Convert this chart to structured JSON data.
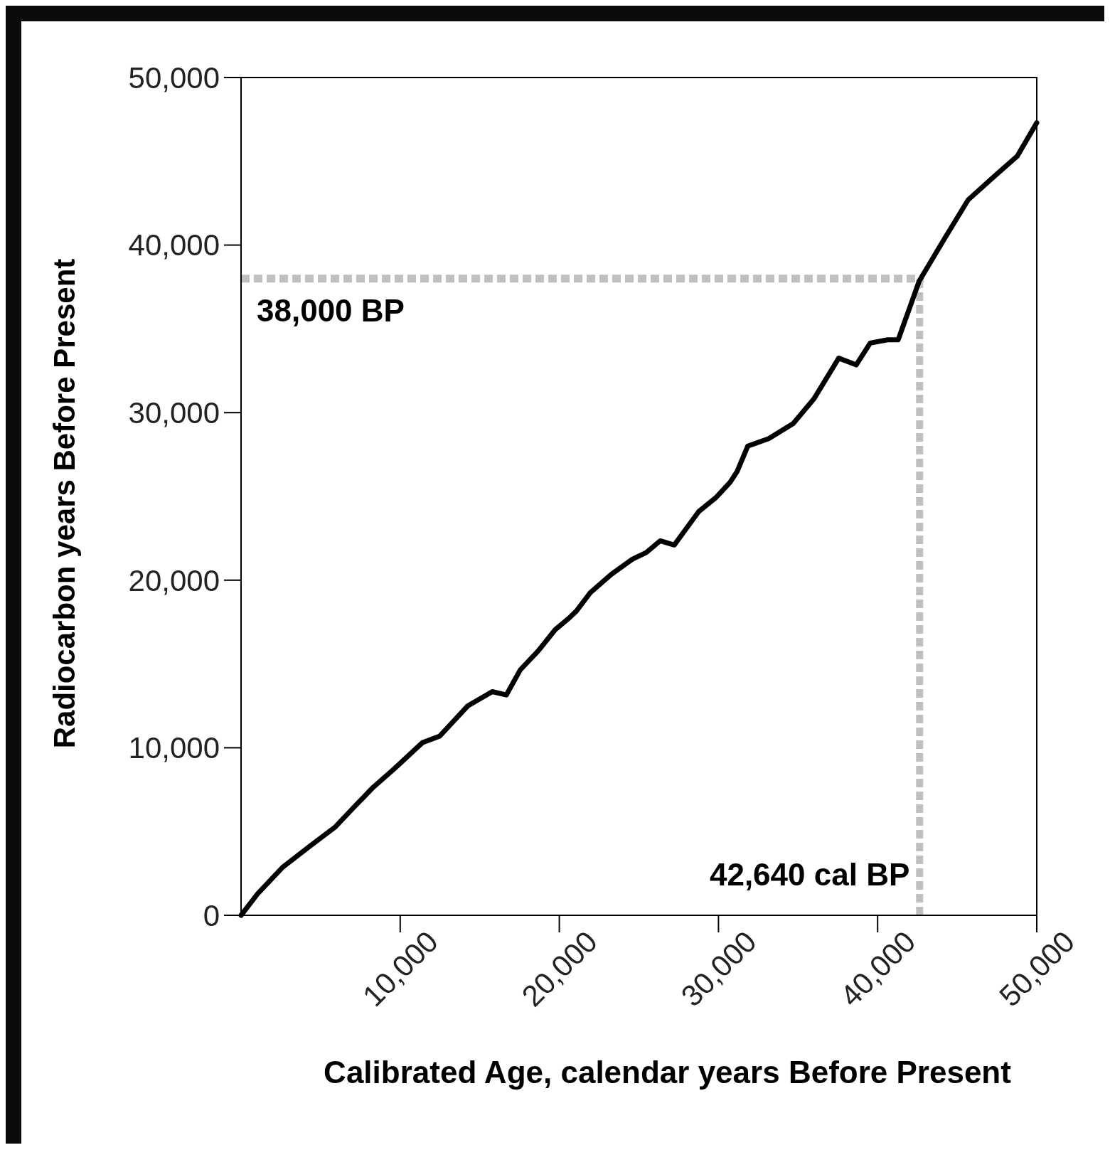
{
  "chart_data": {
    "type": "line",
    "xlabel": "Calibrated Age, calendar years Before Present",
    "ylabel": "Radiocarbon years Before Present",
    "x": [
      0,
      1055,
      2595,
      4354,
      5893,
      6992,
      8311,
      9631,
      11390,
      12489,
      14248,
      15787,
      16667,
      17546,
      18645,
      19745,
      20624,
      21064,
      21944,
      23263,
      24582,
      25462,
      26341,
      27221,
      28760,
      29859,
      30739,
      31179,
      31838,
      33157,
      34697,
      36016,
      37555,
      38655,
      39534,
      40633,
      41293,
      42612,
      44151,
      45690,
      47449,
      48769,
      50000
    ],
    "series": [
      {
        "color": "#000000",
        "values": [
          0,
          1300,
          2850,
          4150,
          5250,
          6350,
          7650,
          8750,
          10300,
          10700,
          12500,
          13350,
          13150,
          14650,
          15750,
          17050,
          17750,
          18150,
          19250,
          20350,
          21250,
          21650,
          22350,
          22100,
          24100,
          24950,
          25850,
          26500,
          28000,
          28450,
          29350,
          30850,
          33250,
          32850,
          34150,
          34350,
          34350,
          37850,
          40300,
          42700,
          44200,
          45300,
          47300
        ]
      }
    ],
    "xlim": [
      0,
      50000
    ],
    "ylim": [
      0,
      50000
    ],
    "xticks": [
      {
        "value": 10000,
        "label": "10,000"
      },
      {
        "value": 20000,
        "label": "20,000"
      },
      {
        "value": 30000,
        "label": "30,000"
      },
      {
        "value": 40000,
        "label": "40,000"
      },
      {
        "value": 50000,
        "label": "50,000"
      }
    ],
    "yticks": [
      0,
      {
        "value": 10000,
        "label": "10,000"
      },
      {
        "value": 20000,
        "label": "20,000"
      },
      {
        "value": 30000,
        "label": "30,000"
      },
      {
        "value": 40000,
        "label": "40,000"
      },
      {
        "value": 50000,
        "label": "50,000"
      }
    ],
    "ref_lines": [
      {
        "axis": "y",
        "value": 38000,
        "label": "38,000 BP",
        "color": "#c0c0c0",
        "line_style": "dashed"
      },
      {
        "axis": "x",
        "value": 42640,
        "label": "42,640 cal BP",
        "color": "#c0c0c0",
        "line_style": "dashed"
      }
    ],
    "grid": false,
    "marker": "none",
    "line_style": "solid"
  }
}
